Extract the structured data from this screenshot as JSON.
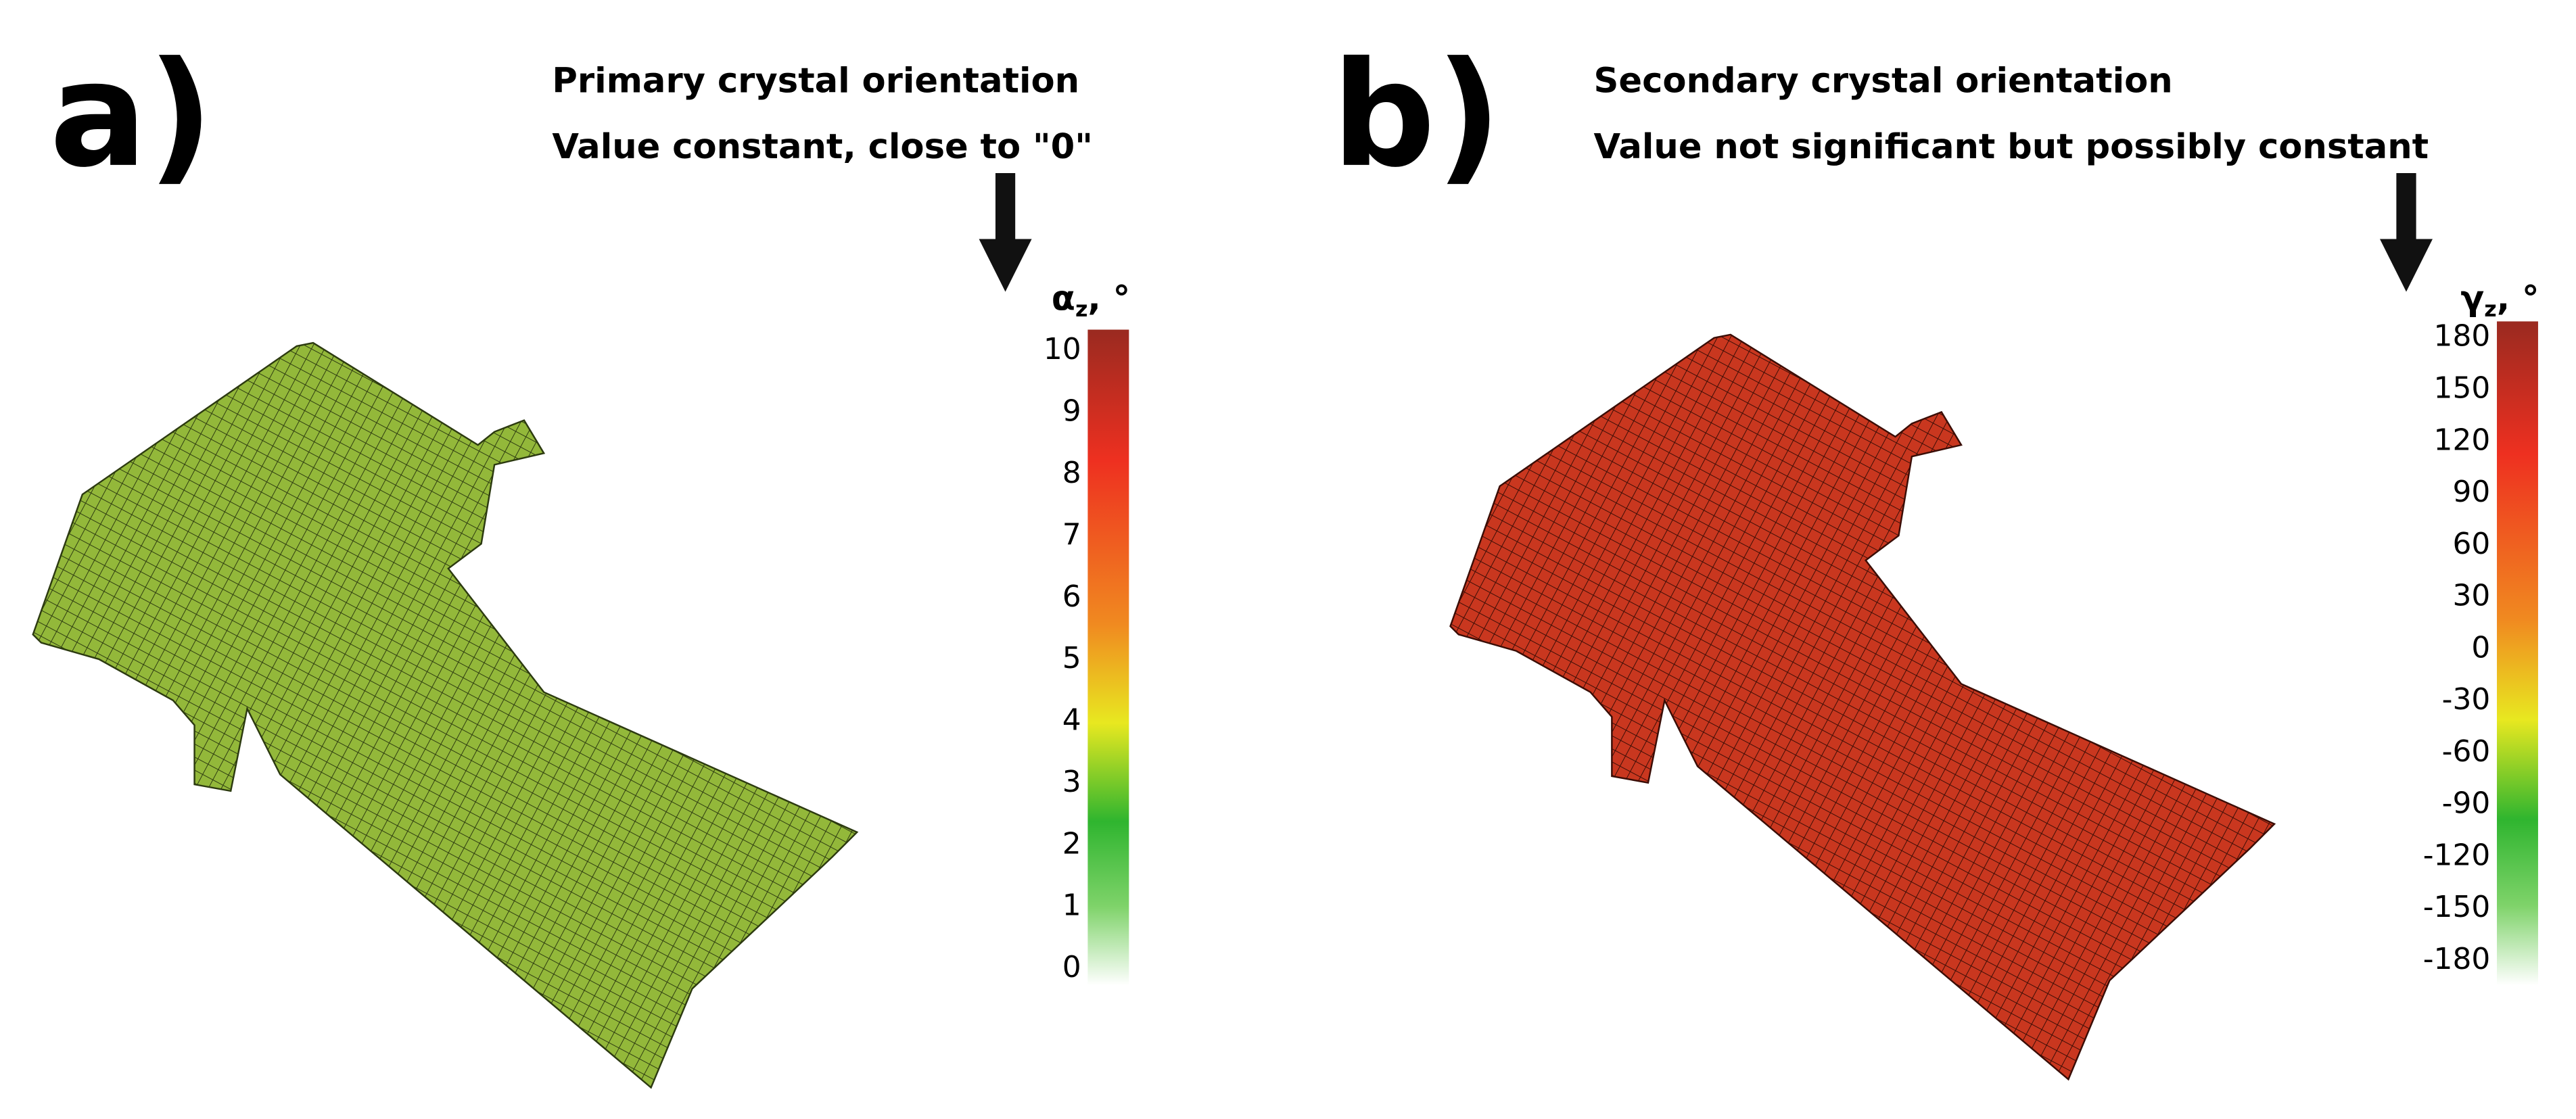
{
  "panels": [
    {
      "label": "a)",
      "title": [
        "Primary crystal orientation",
        "Value constant, close to \"0\""
      ],
      "colorbar": {
        "symbol": "α",
        "subscript": "z",
        "unit": ", °",
        "ticks": [
          10,
          9,
          8,
          7,
          6,
          5,
          4,
          3,
          2,
          1,
          0
        ]
      }
    },
    {
      "label": "b)",
      "title": [
        "Secondary crystal orientation",
        "Value not significant but possibly constant"
      ],
      "colorbar": {
        "symbol": "γ",
        "subscript": "z",
        "unit": ", °",
        "ticks": [
          180,
          150,
          120,
          90,
          60,
          30,
          0,
          -30,
          -60,
          -90,
          -120,
          -150,
          -180
        ]
      }
    }
  ]
}
